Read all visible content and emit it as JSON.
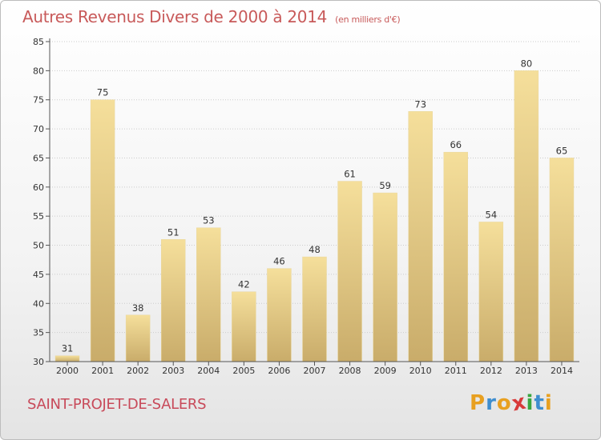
{
  "header": {
    "title": "Autres Revenus Divers de 2000 à 2014",
    "unit": "(en milliers d'€)"
  },
  "footer": {
    "city": "SAINT-PROJET-DE-SALERS",
    "logo_letters": [
      "P",
      "r",
      "o",
      "x",
      "i",
      "t",
      "i"
    ],
    "logo_colors": [
      "#e8a020",
      "#3f8ecf",
      "#e8a020",
      "#d83a3a",
      "#3aa640",
      "#3f8ecf",
      "#e8a020"
    ]
  },
  "colors": {
    "title": "#c85a5a",
    "city": "#c84a5a",
    "bar_top": "#f5df9b",
    "bar_bottom": "#c9ac6a",
    "grid": "#cccccc"
  },
  "chart_data": {
    "type": "bar",
    "title": "Autres Revenus Divers de 2000 à 2014",
    "subtitle": "(en milliers d'€)",
    "xlabel": "",
    "ylabel": "",
    "categories": [
      "2000",
      "2001",
      "2002",
      "2003",
      "2004",
      "2005",
      "2006",
      "2007",
      "2008",
      "2009",
      "2010",
      "2011",
      "2012",
      "2013",
      "2014"
    ],
    "values": [
      31,
      75,
      38,
      51,
      53,
      42,
      46,
      48,
      61,
      59,
      73,
      66,
      54,
      80,
      65
    ],
    "ylim": [
      30,
      85
    ],
    "yticks": [
      30,
      35,
      40,
      45,
      50,
      55,
      60,
      65,
      70,
      75,
      80,
      85
    ],
    "grid": "horizontal dotted"
  }
}
